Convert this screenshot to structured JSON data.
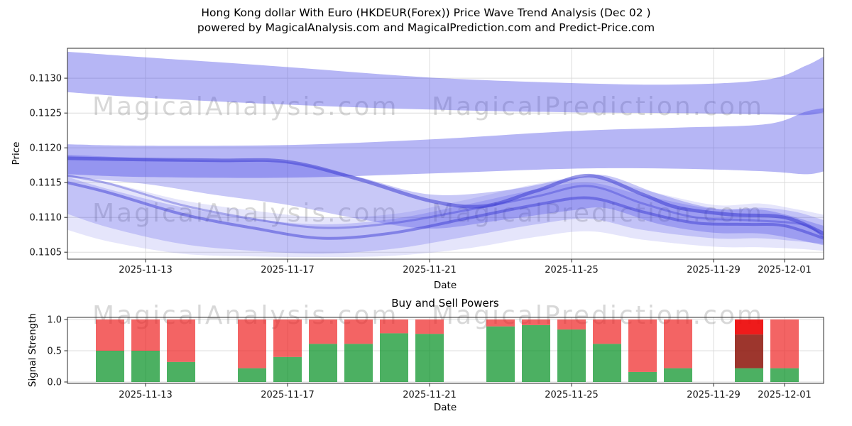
{
  "title": {
    "line1": "Hong Kong dollar With Euro (HKDEUR(Forex)) Price Wave Trend Analysis (Dec 02 )",
    "line2": "powered by MagicalAnalysis.com and MagicalPrediction.com and Predict-Price.com"
  },
  "watermarks": [
    "MagicalAnalysis.com",
    "MagicalPrediction.com"
  ],
  "colors": {
    "band_fill": "#4848e6",
    "line_stroke": "#3434d0",
    "buy_green": "#008f1f",
    "sell_red": "#ee2222",
    "dark_red": "#8f1a10",
    "bright_red": "#ee0808",
    "grid": "#dcdcdc",
    "watermark": "#808080"
  },
  "chart_data": [
    {
      "type": "area",
      "title": "",
      "xlabel": "Date",
      "ylabel": "Price",
      "x_epoch": "2025-11-11",
      "x_domain_days": [
        -0.2,
        21.1
      ],
      "y_domain": [
        0.1104,
        0.11343
      ],
      "x_ticks": [
        {
          "date": "2025-11-13",
          "label": "2025-11-13"
        },
        {
          "date": "2025-11-17",
          "label": "2025-11-17"
        },
        {
          "date": "2025-11-21",
          "label": "2025-11-21"
        },
        {
          "date": "2025-11-25",
          "label": "2025-11-25"
        },
        {
          "date": "2025-11-29",
          "label": "2025-11-29"
        },
        {
          "date": "2025-12-01",
          "label": "2025-12-01"
        }
      ],
      "y_ticks": [
        {
          "value": 0.1105,
          "label": "0.1105"
        },
        {
          "value": 0.111,
          "label": "0.1110"
        },
        {
          "value": 0.1115,
          "label": "0.1115"
        },
        {
          "value": 0.112,
          "label": "0.1120"
        },
        {
          "value": 0.1125,
          "label": "0.1125"
        },
        {
          "value": 0.113,
          "label": "0.1130"
        }
      ],
      "bands": [
        {
          "name": "upper-wave-band",
          "alpha": 0.4,
          "points": [
            [
              -0.2,
              0.11338,
              0.1128
            ],
            [
              2,
              0.1133,
              0.11272
            ],
            [
              6,
              0.11316,
              0.11262
            ],
            [
              10,
              0.11301,
              0.11255
            ],
            [
              14,
              0.11293,
              0.11251
            ],
            [
              17,
              0.11291,
              0.1125
            ],
            [
              19.5,
              0.11298,
              0.11248
            ],
            [
              20.6,
              0.11318,
              0.11247
            ],
            [
              21.1,
              0.11331,
              0.11251
            ]
          ]
        },
        {
          "name": "mid-wave-band",
          "alpha": 0.4,
          "points": [
            [
              -0.2,
              0.11205,
              0.11162
            ],
            [
              2,
              0.11203,
              0.11158
            ],
            [
              6,
              0.11204,
              0.11157
            ],
            [
              10,
              0.11212,
              0.11163
            ],
            [
              14,
              0.11224,
              0.1117
            ],
            [
              17,
              0.11229,
              0.1117
            ],
            [
              19.5,
              0.11234,
              0.11166
            ],
            [
              20.6,
              0.11252,
              0.11162
            ],
            [
              21.1,
              0.11257,
              0.11166
            ]
          ]
        },
        {
          "name": "lower-wave-band-outer",
          "alpha": 0.14,
          "points": [
            [
              -0.2,
              0.11162,
              0.11082
            ],
            [
              1,
              0.1115,
              0.11065
            ],
            [
              3,
              0.11125,
              0.11048
            ],
            [
              5,
              0.1111,
              0.11044
            ],
            [
              7,
              0.111,
              0.11043
            ],
            [
              9,
              0.11105,
              0.11045
            ],
            [
              11,
              0.11125,
              0.11055
            ],
            [
              13,
              0.11148,
              0.11072
            ],
            [
              14.5,
              0.11158,
              0.1108
            ],
            [
              16,
              0.1114,
              0.11068
            ],
            [
              18,
              0.11118,
              0.11058
            ],
            [
              19.3,
              0.1112,
              0.11057
            ],
            [
              20.3,
              0.11112,
              0.11055
            ],
            [
              21.1,
              0.11104,
              0.11052
            ]
          ]
        },
        {
          "name": "lower-wave-band-mid",
          "alpha": 0.22,
          "points": [
            [
              -0.2,
              0.11158,
              0.11105
            ],
            [
              1,
              0.1114,
              0.11085
            ],
            [
              3,
              0.11115,
              0.11062
            ],
            [
              5,
              0.11098,
              0.11052
            ],
            [
              7,
              0.1109,
              0.11048
            ],
            [
              9,
              0.11098,
              0.11055
            ],
            [
              11,
              0.11118,
              0.11072
            ],
            [
              13,
              0.1114,
              0.1109
            ],
            [
              14.5,
              0.1115,
              0.11098
            ],
            [
              16,
              0.11132,
              0.11082
            ],
            [
              18,
              0.11112,
              0.1107
            ],
            [
              19.3,
              0.11114,
              0.1107
            ],
            [
              20.3,
              0.11108,
              0.11066
            ],
            [
              21.1,
              0.11096,
              0.11062
            ]
          ]
        },
        {
          "name": "lower-wave-band-core",
          "alpha": 0.3,
          "points": [
            [
              -0.2,
              0.1119,
              0.11158
            ],
            [
              2,
              0.11185,
              0.11148
            ],
            [
              4,
              0.11182,
              0.11132
            ],
            [
              6,
              0.1118,
              0.11118
            ],
            [
              8,
              0.11158,
              0.11098
            ],
            [
              10,
              0.11133,
              0.11084
            ],
            [
              12,
              0.11138,
              0.11096
            ],
            [
              14,
              0.11156,
              0.1111
            ],
            [
              15,
              0.1116,
              0.11113
            ],
            [
              16.5,
              0.11133,
              0.1109
            ],
            [
              18,
              0.11113,
              0.11078
            ],
            [
              19.5,
              0.1111,
              0.11076
            ],
            [
              21.1,
              0.11088,
              0.1106
            ]
          ]
        }
      ],
      "lines": [
        {
          "name": "core-trend-upper",
          "alpha": 0.5,
          "width": 5,
          "points": [
            [
              -0.2,
              0.11185
            ],
            [
              2,
              0.11183
            ],
            [
              4,
              0.11182
            ],
            [
              6,
              0.1118
            ],
            [
              8,
              0.11155
            ],
            [
              10,
              0.11124
            ],
            [
              11.5,
              0.11116
            ],
            [
              13,
              0.11138
            ],
            [
              14.5,
              0.1116
            ],
            [
              16,
              0.11133
            ],
            [
              17,
              0.11114
            ],
            [
              18.5,
              0.11104
            ],
            [
              20,
              0.111
            ],
            [
              21.1,
              0.11077
            ]
          ]
        },
        {
          "name": "core-trend-lower",
          "alpha": 0.45,
          "width": 4,
          "points": [
            [
              -0.2,
              0.1115
            ],
            [
              1,
              0.11135
            ],
            [
              3,
              0.11105
            ],
            [
              5,
              0.11085
            ],
            [
              7,
              0.1107
            ],
            [
              9,
              0.11078
            ],
            [
              11,
              0.11098
            ],
            [
              13,
              0.11118
            ],
            [
              14.5,
              0.11128
            ],
            [
              16,
              0.11108
            ],
            [
              17.5,
              0.11092
            ],
            [
              19,
              0.1109
            ],
            [
              20,
              0.11088
            ],
            [
              21.1,
              0.1107
            ]
          ]
        },
        {
          "name": "core-trend-mid",
          "alpha": 0.35,
          "width": 3,
          "points": [
            [
              -0.2,
              0.1116
            ],
            [
              1,
              0.11148
            ],
            [
              3,
              0.11118
            ],
            [
              5,
              0.11098
            ],
            [
              7,
              0.11085
            ],
            [
              9,
              0.11092
            ],
            [
              11,
              0.1111
            ],
            [
              13,
              0.1113
            ],
            [
              14.5,
              0.11145
            ],
            [
              16,
              0.1112
            ],
            [
              17.5,
              0.111
            ],
            [
              19,
              0.11096
            ],
            [
              20.5,
              0.1109
            ],
            [
              21.1,
              0.11072
            ]
          ]
        }
      ]
    },
    {
      "type": "bar",
      "title": "Buy and Sell Powers",
      "xlabel": "Date",
      "ylabel": "Signal Strength",
      "x_epoch": "2025-11-11",
      "x_domain_days": [
        -0.2,
        21.1
      ],
      "ylim": [
        0,
        1
      ],
      "x_ticks": [
        {
          "date": "2025-11-13",
          "label": "2025-11-13"
        },
        {
          "date": "2025-11-17",
          "label": "2025-11-17"
        },
        {
          "date": "2025-11-21",
          "label": "2025-11-21"
        },
        {
          "date": "2025-11-25",
          "label": "2025-11-25"
        },
        {
          "date": "2025-11-29",
          "label": "2025-11-29"
        },
        {
          "date": "2025-12-01",
          "label": "2025-12-01"
        }
      ],
      "y_ticks": [
        {
          "value": 0.0,
          "label": "0.0"
        },
        {
          "value": 0.5,
          "label": "0.5"
        },
        {
          "value": 1.0,
          "label": "1.0"
        }
      ],
      "bars": [
        {
          "date": "2025-11-12",
          "buy": 0.5,
          "sell": 0.5
        },
        {
          "date": "2025-11-13",
          "buy": 0.5,
          "sell": 0.5
        },
        {
          "date": "2025-11-14",
          "buy": 0.32,
          "sell": 0.68
        },
        {
          "date": "2025-11-16",
          "buy": 0.22,
          "sell": 0.78
        },
        {
          "date": "2025-11-17",
          "buy": 0.4,
          "sell": 0.6
        },
        {
          "date": "2025-11-18",
          "buy": 0.61,
          "sell": 0.39
        },
        {
          "date": "2025-11-19",
          "buy": 0.61,
          "sell": 0.39
        },
        {
          "date": "2025-11-20",
          "buy": 0.78,
          "sell": 0.22
        },
        {
          "date": "2025-11-21",
          "buy": 0.77,
          "sell": 0.23
        },
        {
          "date": "2025-11-23",
          "buy": 0.89,
          "sell": 0.11
        },
        {
          "date": "2025-11-24",
          "buy": 0.91,
          "sell": 0.09
        },
        {
          "date": "2025-11-25",
          "buy": 0.84,
          "sell": 0.16
        },
        {
          "date": "2025-11-26",
          "buy": 0.61,
          "sell": 0.39
        },
        {
          "date": "2025-11-27",
          "buy": 0.16,
          "sell": 0.84
        },
        {
          "date": "2025-11-28",
          "buy": 0.22,
          "sell": 0.78
        },
        {
          "date": "2025-11-30",
          "buy": 0.22,
          "dark": 0.54,
          "sell": 0.24
        },
        {
          "date": "2025-12-01",
          "buy": 0.22,
          "sell": 0.78
        }
      ]
    }
  ]
}
